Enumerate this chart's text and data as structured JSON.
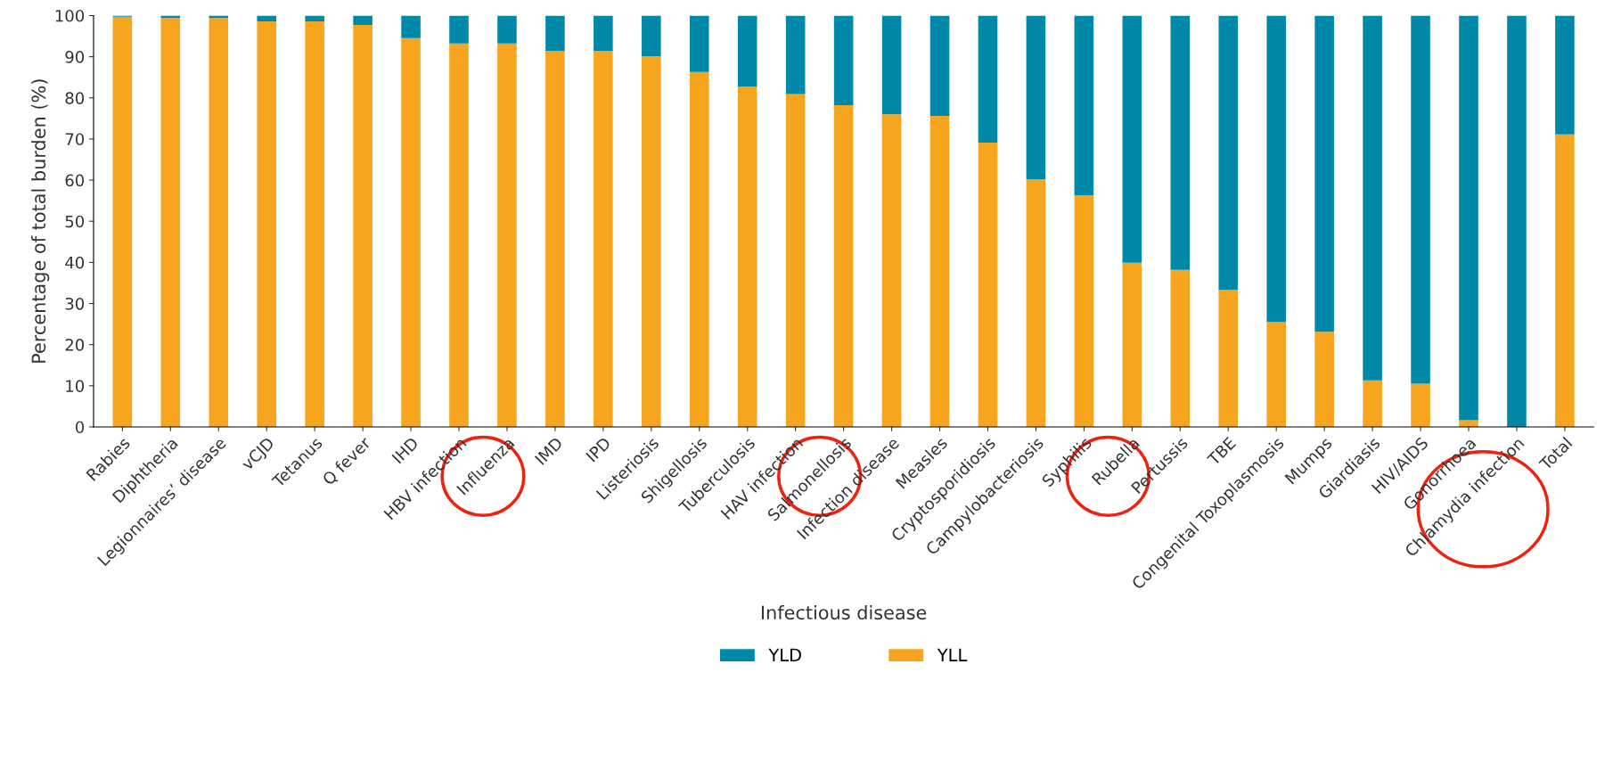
{
  "chart_data": {
    "type": "bar",
    "stacked": true,
    "xlabel": "Infectious disease",
    "ylabel": "Percentage of total burden (%)",
    "categories": [
      "Rabies",
      "Diphtheria",
      "Legionnaires’ disease",
      "vCJD",
      "Tetanus",
      "Q fever",
      "IHD",
      "HBV infection",
      "Influenza",
      "IMD",
      "IPD",
      "Listeriosis",
      "Shigellosis",
      "Tuberculosis",
      "HAV infection",
      "Salmonellosis",
      "Infection disease",
      "Measles",
      "Cryptosporidiosis",
      "Campylobacteriosis",
      "Syphilis",
      "Rubella",
      "Pertussis",
      "TBE",
      "Congenital Toxoplasmosis",
      "Mumps",
      "Giardiasis",
      "HIV/AIDS",
      "Gonorrhoea",
      "Chlamydia infection",
      "Total"
    ],
    "series": [
      {
        "name": "YLL",
        "color": "#f7a51f",
        "values": [
          99.7,
          99.4,
          99.4,
          98.6,
          98.6,
          97.7,
          94.5,
          93.2,
          93.2,
          91.4,
          91.4,
          90.1,
          86.3,
          82.7,
          80.9,
          78.2,
          76.0,
          75.6,
          69.1,
          60.2,
          56.3,
          39.9,
          38.2,
          33.3,
          25.5,
          23.1,
          11.3,
          10.5,
          1.6,
          0,
          71.1
        ]
      },
      {
        "name": "YLD",
        "color": "#0088a8",
        "values": [
          0.3,
          0.6,
          0.6,
          1.4,
          1.4,
          2.3,
          5.5,
          6.8,
          6.8,
          8.6,
          8.6,
          9.9,
          13.7,
          17.3,
          19.1,
          21.8,
          24.0,
          24.4,
          30.9,
          39.8,
          43.7,
          60.1,
          61.8,
          66.7,
          74.5,
          76.9,
          88.7,
          89.5,
          98.4,
          100,
          28.9
        ]
      }
    ],
    "ylim": [
      0,
      100
    ],
    "yticks": [
      0,
      10,
      20,
      30,
      40,
      50,
      60,
      70,
      80,
      90,
      100
    ],
    "grid": false,
    "legend": "bottom"
  }
}
